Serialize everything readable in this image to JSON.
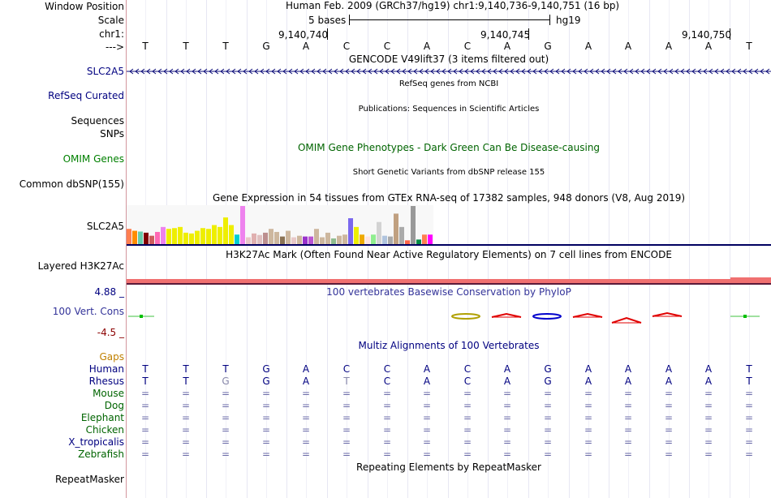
{
  "header": {
    "window_position_label": "Window Position",
    "scale_label": "Scale",
    "chrom_label": "chr1:",
    "strand_label": "--->",
    "assembly_text": "Human Feb. 2009 (GRCh37/hg19)   chr1:9,140,736-9,140,751 (16 bp)",
    "scale_text": "5 bases",
    "scale_db": "hg19",
    "coord_ticks": [
      "9,140,740",
      "9,140,745",
      "9,140,750"
    ]
  },
  "bases": [
    "T",
    "T",
    "T",
    "G",
    "A",
    "C",
    "C",
    "A",
    "C",
    "A",
    "G",
    "A",
    "A",
    "A",
    "A",
    "T"
  ],
  "tracks": {
    "gencode": {
      "title": "GENCODE V49lift37 (3 items filtered out)",
      "item_label": "SLC2A5"
    },
    "refseq": {
      "title": "RefSeq genes from NCBI",
      "label": "RefSeq Curated"
    },
    "publications": {
      "title": "Publications: Sequences in Scientific Articles",
      "label1": "Sequences",
      "label2": "SNPs"
    },
    "omim": {
      "title": "OMIM Gene Phenotypes - Dark Green Can Be Disease-causing",
      "label": "OMIM Genes"
    },
    "dbsnp": {
      "title": "Short Genetic Variants from dbSNP release 155",
      "label": "Common dbSNP(155)"
    },
    "gtex": {
      "title": "Gene Expression in 54 tissues from GTEx RNA-seq of 17382 samples, 948 donors (V8, Aug 2019)",
      "label": "SLC2A5",
      "bars": [
        {
          "value": 0.4,
          "color": "#ff7f50"
        },
        {
          "value": 0.35,
          "color": "#ff8c00"
        },
        {
          "value": 0.33,
          "color": "#66cdaa"
        },
        {
          "value": 0.3,
          "color": "#800000"
        },
        {
          "value": 0.22,
          "color": "#cd5c5c"
        },
        {
          "value": 0.32,
          "color": "#ff69b4"
        },
        {
          "value": 0.45,
          "color": "#ee82ee"
        },
        {
          "value": 0.4,
          "color": "#eeee00"
        },
        {
          "value": 0.42,
          "color": "#eeee00"
        },
        {
          "value": 0.45,
          "color": "#eeee00"
        },
        {
          "value": 0.3,
          "color": "#eeee00"
        },
        {
          "value": 0.28,
          "color": "#eeee00"
        },
        {
          "value": 0.35,
          "color": "#eeee00"
        },
        {
          "value": 0.42,
          "color": "#eeee00"
        },
        {
          "value": 0.4,
          "color": "#eeee00"
        },
        {
          "value": 0.5,
          "color": "#eeee00"
        },
        {
          "value": 0.45,
          "color": "#eeee00"
        },
        {
          "value": 0.7,
          "color": "#eeee00"
        },
        {
          "value": 0.5,
          "color": "#eeee00"
        },
        {
          "value": 0.25,
          "color": "#00ced1"
        },
        {
          "value": 1.0,
          "color": "#ee82ee"
        },
        {
          "value": 0.18,
          "color": "#e8c8c8"
        },
        {
          "value": 0.28,
          "color": "#e0b0b0"
        },
        {
          "value": 0.24,
          "color": "#e0c0c0"
        },
        {
          "value": 0.3,
          "color": "#bc8f8f"
        },
        {
          "value": 0.4,
          "color": "#cdb79e"
        },
        {
          "value": 0.32,
          "color": "#cdb79e"
        },
        {
          "value": 0.2,
          "color": "#8b7355"
        },
        {
          "value": 0.35,
          "color": "#cdb79e"
        },
        {
          "value": 0.18,
          "color": "#e8c8c8"
        },
        {
          "value": 0.22,
          "color": "#cdb79e"
        },
        {
          "value": 0.2,
          "color": "#9932cc"
        },
        {
          "value": 0.2,
          "color": "#ba55d3"
        },
        {
          "value": 0.4,
          "color": "#cdb79e"
        },
        {
          "value": 0.18,
          "color": "#cdb79e"
        },
        {
          "value": 0.3,
          "color": "#cdb79e"
        },
        {
          "value": 0.15,
          "color": "#8fbc8f"
        },
        {
          "value": 0.22,
          "color": "#cdb79e"
        },
        {
          "value": 0.25,
          "color": "#cdb79e"
        },
        {
          "value": 0.68,
          "color": "#7b68ee"
        },
        {
          "value": 0.45,
          "color": "#eeee00"
        },
        {
          "value": 0.25,
          "color": "#eeaa00"
        },
        {
          "value": 0.2,
          "color": "#ffe4e1"
        },
        {
          "value": 0.25,
          "color": "#90ee90"
        },
        {
          "value": 0.58,
          "color": "#d3d3d3"
        },
        {
          "value": 0.22,
          "color": "#b0c4de"
        },
        {
          "value": 0.2,
          "color": "#aaaaaa"
        },
        {
          "value": 0.8,
          "color": "#c0a080"
        },
        {
          "value": 0.45,
          "color": "#aaaaaa"
        },
        {
          "value": 0.1,
          "color": "#ff6347"
        },
        {
          "value": 1.0,
          "color": "#999999"
        },
        {
          "value": 0.12,
          "color": "#008b45"
        },
        {
          "value": 0.25,
          "color": "#ff7f50"
        },
        {
          "value": 0.25,
          "color": "#ff00ff"
        }
      ]
    },
    "h3k27ac": {
      "title": "H3K27Ac Mark (Often Found Near Active Regulatory Elements) on 7 cell lines from ENCODE",
      "label": "Layered H3K27Ac"
    },
    "phylop": {
      "title": "100 vertebrates Basewise Conservation by PhyloP",
      "label": "100 Vert. Cons",
      "max_label": "4.88 _",
      "min_label": "-4.5 _"
    },
    "multiz": {
      "title": "Multiz Alignments of 100 Vertebrates",
      "gaps_label": "Gaps",
      "species": [
        {
          "name": "Human",
          "row": [
            "T",
            "T",
            "T",
            "G",
            "A",
            "C",
            "C",
            "A",
            "C",
            "A",
            "G",
            "A",
            "A",
            "A",
            "A",
            "T"
          ]
        },
        {
          "name": "Rhesus",
          "row": [
            "T",
            "T",
            "G",
            "G",
            "A",
            "T",
            "C",
            "A",
            "C",
            "A",
            "G",
            "A",
            "A",
            "A",
            "A",
            "T"
          ]
        },
        {
          "name": "Mouse",
          "row": [
            "=",
            "=",
            "=",
            "=",
            "=",
            "=",
            "=",
            "=",
            "=",
            "=",
            "=",
            "=",
            "=",
            "=",
            "=",
            "="
          ]
        },
        {
          "name": "Dog",
          "row": [
            "=",
            "=",
            "=",
            "=",
            "=",
            "=",
            "=",
            "=",
            "=",
            "=",
            "=",
            "=",
            "=",
            "=",
            "=",
            "="
          ]
        },
        {
          "name": "Elephant",
          "row": [
            "=",
            "=",
            "=",
            "=",
            "=",
            "=",
            "=",
            "=",
            "=",
            "=",
            "=",
            "=",
            "=",
            "=",
            "=",
            "="
          ]
        },
        {
          "name": "Chicken",
          "row": [
            "=",
            "=",
            "=",
            "=",
            "=",
            "=",
            "=",
            "=",
            "=",
            "=",
            "=",
            "=",
            "=",
            "=",
            "=",
            "="
          ]
        },
        {
          "name": "X_tropicalis",
          "row": [
            "=",
            "=",
            "=",
            "=",
            "=",
            "=",
            "=",
            "=",
            "=",
            "=",
            "=",
            "=",
            "=",
            "=",
            "=",
            "="
          ]
        },
        {
          "name": "Zebrafish",
          "row": [
            "=",
            "=",
            "=",
            "=",
            "=",
            "=",
            "=",
            "=",
            "=",
            "=",
            "=",
            "=",
            "=",
            "=",
            "=",
            "="
          ]
        }
      ]
    },
    "repeatmasker": {
      "title": "Repeating Elements by RepeatMasker",
      "label": "RepeatMasker"
    }
  }
}
